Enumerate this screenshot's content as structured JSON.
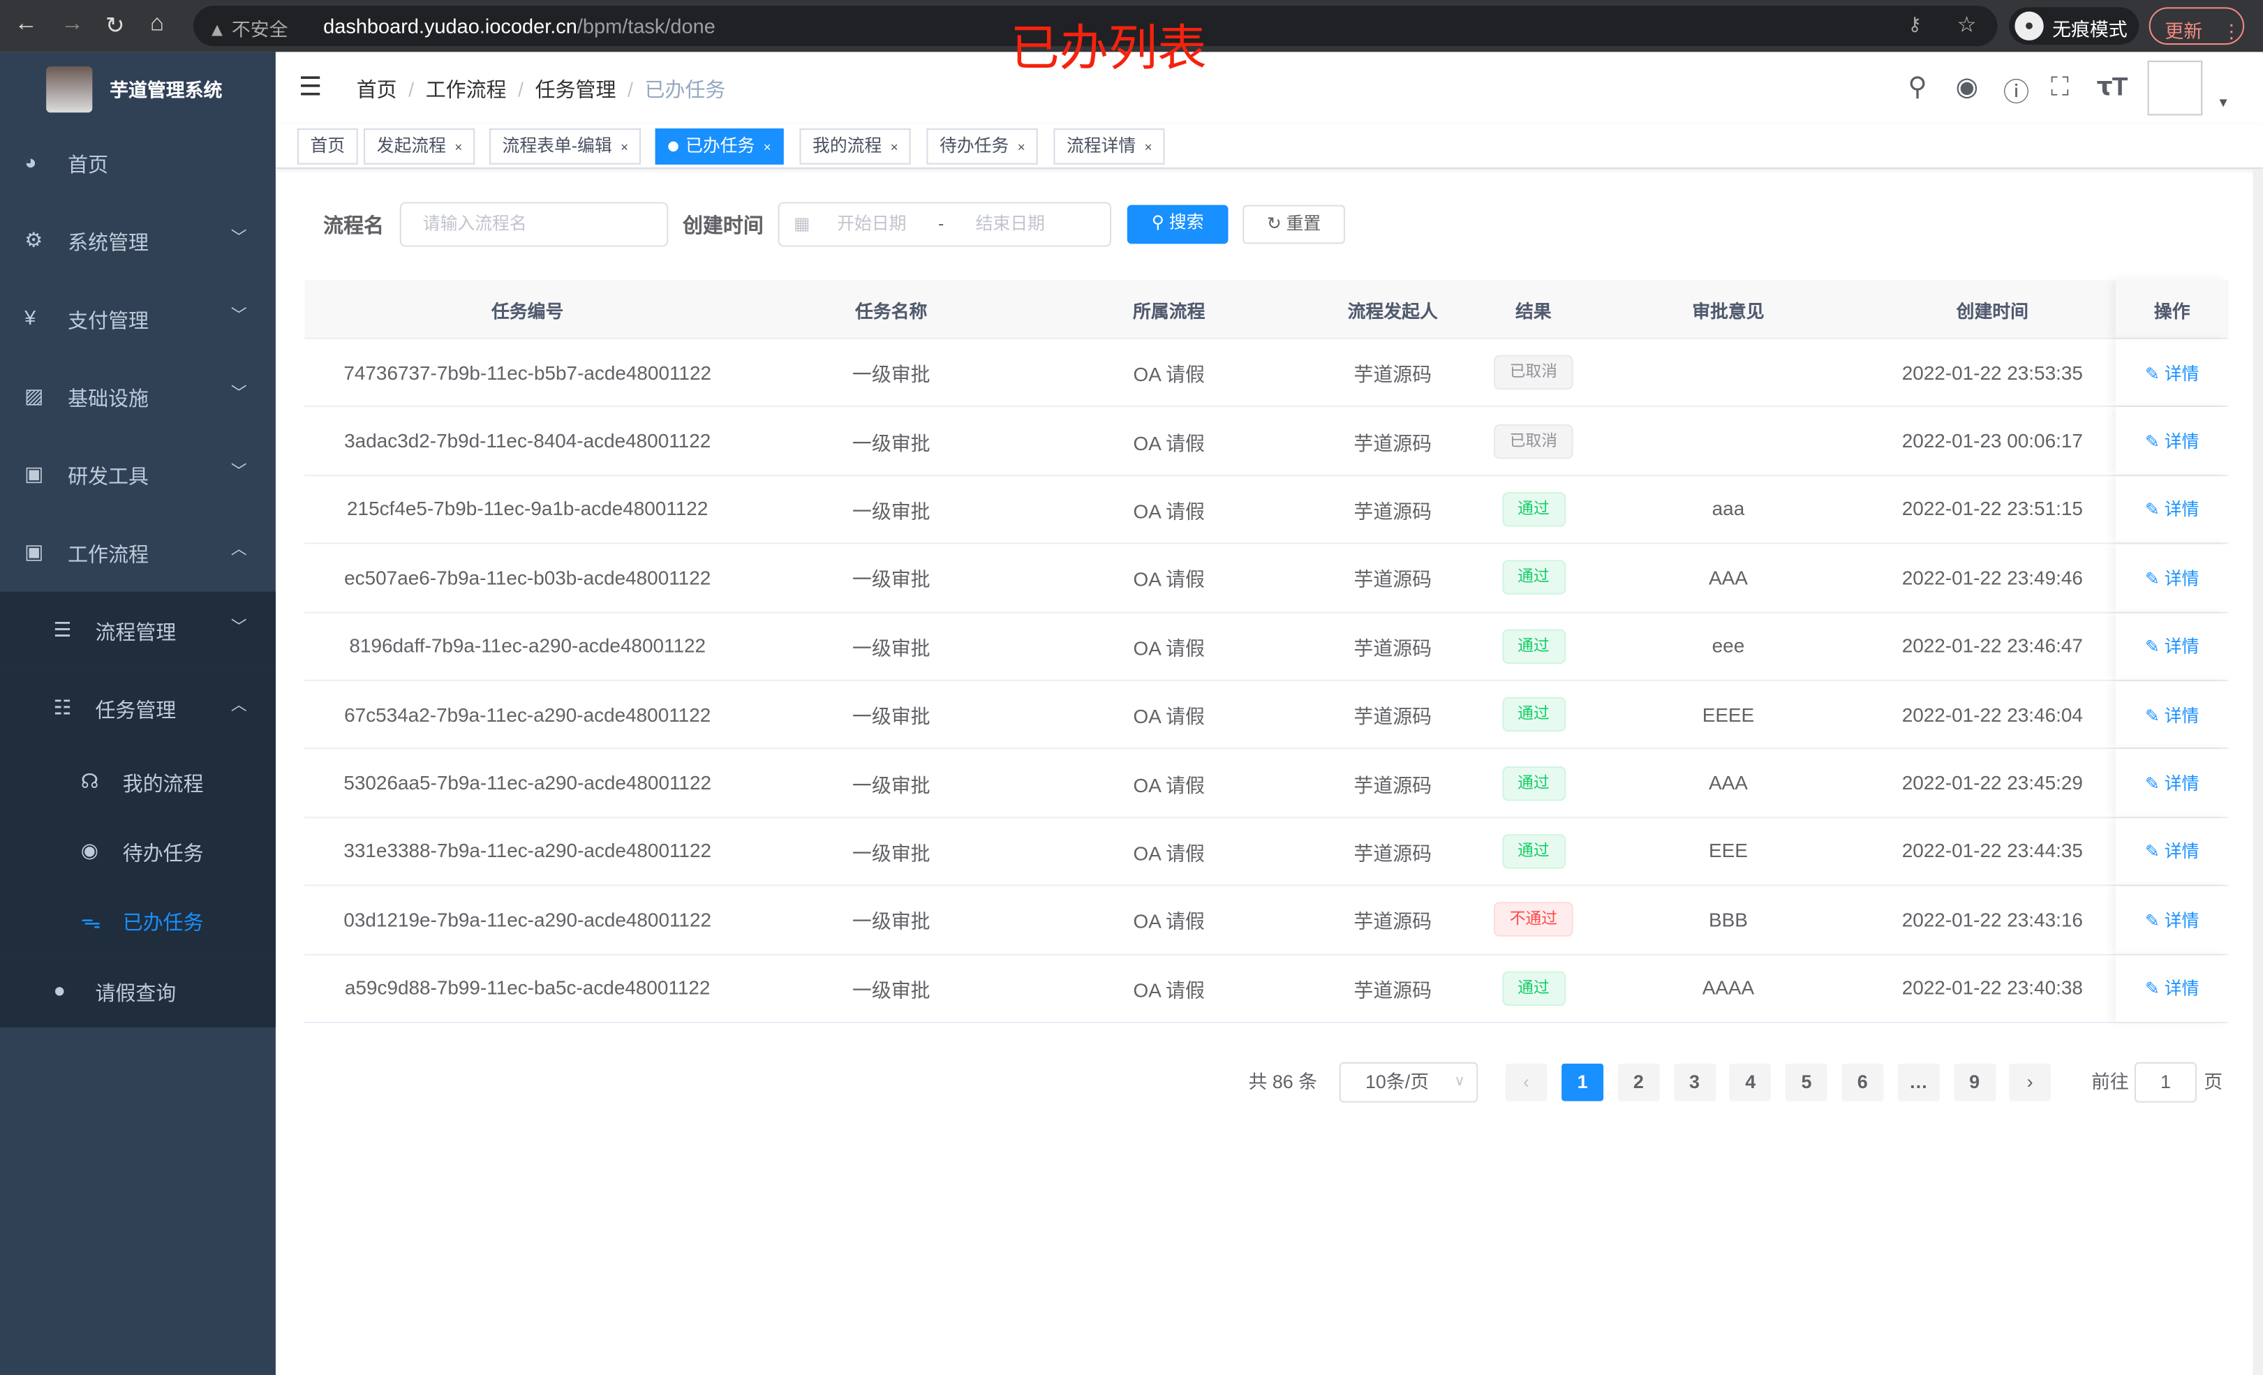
{
  "browser": {
    "insecure": "不安全",
    "url_host": "dashboard.yudao.iocoder.cn",
    "url_path": "/bpm/task/done",
    "incognito": "无痕模式",
    "update": "更新",
    "overlay_title": "已办列表"
  },
  "sidebar": {
    "title": "芋道管理系统",
    "items": [
      {
        "label": "首页",
        "icon": "dashboard-icon"
      },
      {
        "label": "系统管理",
        "icon": "gear-icon"
      },
      {
        "label": "支付管理",
        "icon": "yen-icon"
      },
      {
        "label": "基础设施",
        "icon": "monitor-icon"
      },
      {
        "label": "研发工具",
        "icon": "toolbox-icon"
      },
      {
        "label": "工作流程",
        "icon": "toolbox-icon"
      }
    ],
    "sub_items": [
      {
        "label": "流程管理"
      },
      {
        "label": "任务管理"
      }
    ],
    "task_items": [
      {
        "label": "我的流程"
      },
      {
        "label": "待办任务"
      },
      {
        "label": "已办任务"
      }
    ],
    "leave": {
      "label": "请假查询"
    }
  },
  "breadcrumb": [
    "首页",
    "工作流程",
    "任务管理",
    "已办任务"
  ],
  "tags": [
    {
      "label": "首页"
    },
    {
      "label": "发起流程"
    },
    {
      "label": "流程表单-编辑"
    },
    {
      "label": "已办任务"
    },
    {
      "label": "我的流程"
    },
    {
      "label": "待办任务"
    },
    {
      "label": "流程详情"
    }
  ],
  "filter": {
    "name_label": "流程名",
    "name_placeholder": "请输入流程名",
    "time_label": "创建时间",
    "start_placeholder": "开始日期",
    "range_sep": "-",
    "end_placeholder": "结束日期",
    "search": "搜索",
    "reset": "重置"
  },
  "table": {
    "headers": [
      "任务编号",
      "任务名称",
      "所属流程",
      "流程发起人",
      "结果",
      "审批意见",
      "创建时间",
      "操作"
    ],
    "rows": [
      {
        "id": "74736737-7b9b-11ec-b5b7-acde48001122",
        "name": "一级审批",
        "process": "OA 请假",
        "starter": "芋道源码",
        "result": "已取消",
        "status": "cancel",
        "comment": "",
        "time": "2022-01-22 23:53:35"
      },
      {
        "id": "3adac3d2-7b9d-11ec-8404-acde48001122",
        "name": "一级审批",
        "process": "OA 请假",
        "starter": "芋道源码",
        "result": "已取消",
        "status": "cancel",
        "comment": "",
        "time": "2022-01-23 00:06:17"
      },
      {
        "id": "215cf4e5-7b9b-11ec-9a1b-acde48001122",
        "name": "一级审批",
        "process": "OA 请假",
        "starter": "芋道源码",
        "result": "通过",
        "status": "pass",
        "comment": "aaa",
        "time": "2022-01-22 23:51:15"
      },
      {
        "id": "ec507ae6-7b9a-11ec-b03b-acde48001122",
        "name": "一级审批",
        "process": "OA 请假",
        "starter": "芋道源码",
        "result": "通过",
        "status": "pass",
        "comment": "AAA",
        "time": "2022-01-22 23:49:46"
      },
      {
        "id": "8196daff-7b9a-11ec-a290-acde48001122",
        "name": "一级审批",
        "process": "OA 请假",
        "starter": "芋道源码",
        "result": "通过",
        "status": "pass",
        "comment": "eee",
        "time": "2022-01-22 23:46:47"
      },
      {
        "id": "67c534a2-7b9a-11ec-a290-acde48001122",
        "name": "一级审批",
        "process": "OA 请假",
        "starter": "芋道源码",
        "result": "通过",
        "status": "pass",
        "comment": "EEEE",
        "time": "2022-01-22 23:46:04"
      },
      {
        "id": "53026aa5-7b9a-11ec-a290-acde48001122",
        "name": "一级审批",
        "process": "OA 请假",
        "starter": "芋道源码",
        "result": "通过",
        "status": "pass",
        "comment": "AAA",
        "time": "2022-01-22 23:45:29"
      },
      {
        "id": "331e3388-7b9a-11ec-a290-acde48001122",
        "name": "一级审批",
        "process": "OA 请假",
        "starter": "芋道源码",
        "result": "通过",
        "status": "pass",
        "comment": "EEE",
        "time": "2022-01-22 23:44:35"
      },
      {
        "id": "03d1219e-7b9a-11ec-a290-acde48001122",
        "name": "一级审批",
        "process": "OA 请假",
        "starter": "芋道源码",
        "result": "不通过",
        "status": "reject",
        "comment": "BBB",
        "time": "2022-01-22 23:43:16"
      },
      {
        "id": "a59c9d88-7b99-11ec-ba5c-acde48001122",
        "name": "一级审批",
        "process": "OA 请假",
        "starter": "芋道源码",
        "result": "通过",
        "status": "pass",
        "comment": "AAAA",
        "time": "2022-01-22 23:40:38"
      }
    ],
    "action": "详情"
  },
  "pagination": {
    "total": "共 86 条",
    "page_size": "10条/页",
    "pages": [
      "1",
      "2",
      "3",
      "4",
      "5",
      "6",
      "…",
      "9"
    ],
    "current": "1",
    "goto_label": "前往",
    "goto_value": "1",
    "page_unit": "页"
  },
  "colors": {
    "accent": "#1890ff",
    "sidebar": "#304156",
    "submenu": "#1f2d3d",
    "overlay": "#f5220d"
  }
}
